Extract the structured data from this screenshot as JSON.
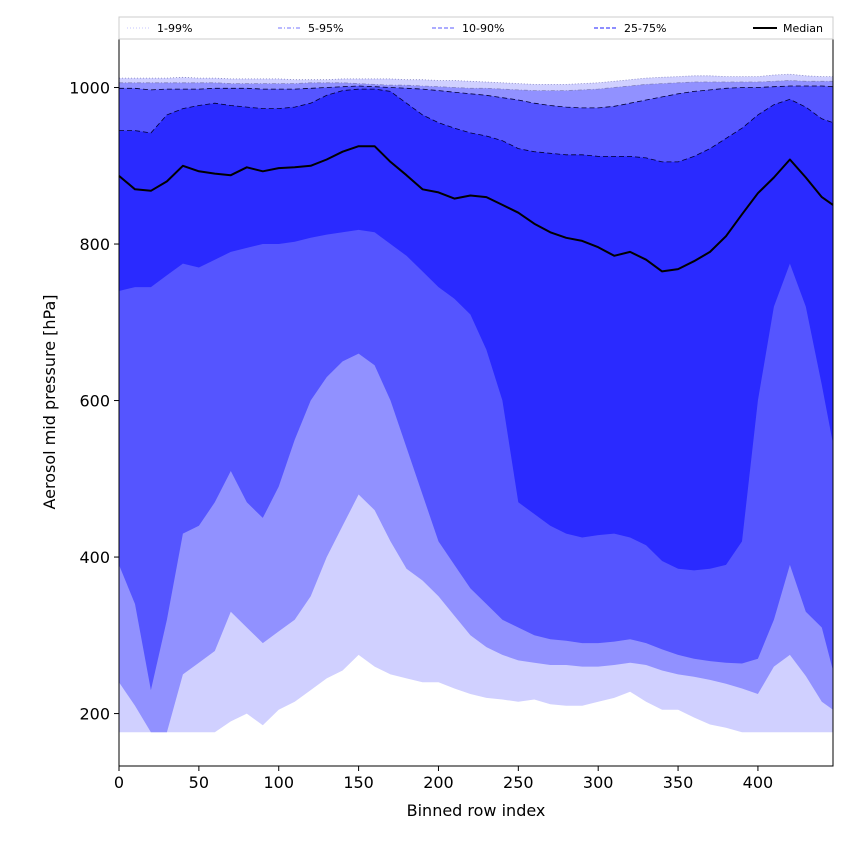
{
  "chart_data": {
    "type": "area",
    "xlabel": "Binned row index",
    "ylabel": "Aerosol mid pressure [hPa]",
    "xlim": [
      0,
      447
    ],
    "ylim": [
      133,
      1062
    ],
    "xticks": [
      0,
      50,
      100,
      150,
      200,
      250,
      300,
      350,
      400
    ],
    "yticks": [
      200,
      400,
      600,
      800,
      1000
    ],
    "grid": false,
    "legend_position": "top",
    "x": [
      0,
      10,
      20,
      30,
      40,
      50,
      60,
      70,
      80,
      90,
      100,
      110,
      120,
      130,
      140,
      150,
      160,
      170,
      180,
      190,
      200,
      210,
      220,
      230,
      240,
      250,
      260,
      270,
      280,
      290,
      300,
      310,
      320,
      330,
      340,
      350,
      360,
      370,
      380,
      390,
      400,
      410,
      420,
      430,
      440,
      447
    ],
    "bands": [
      {
        "name": "1-99%",
        "color": "#d0d0ff",
        "lower": [
          176,
          176,
          176,
          176,
          176,
          176,
          176,
          190,
          200,
          185,
          205,
          215,
          230,
          245,
          255,
          275,
          260,
          250,
          245,
          240,
          240,
          232,
          225,
          220,
          218,
          215,
          218,
          212,
          210,
          210,
          215,
          220,
          228,
          215,
          205,
          205,
          195,
          186,
          182,
          176,
          176,
          176,
          176,
          176,
          176,
          176
        ],
        "upper": [
          1012,
          1012,
          1012,
          1012,
          1013,
          1012,
          1012,
          1011,
          1011,
          1011,
          1011,
          1010,
          1010,
          1010,
          1011,
          1011,
          1011,
          1011,
          1010,
          1010,
          1009,
          1009,
          1008,
          1007,
          1006,
          1005,
          1004,
          1004,
          1004,
          1005,
          1006,
          1008,
          1010,
          1012,
          1013,
          1014,
          1015,
          1015,
          1014,
          1014,
          1014,
          1016,
          1017,
          1015,
          1014,
          1014
        ]
      },
      {
        "name": "5-95%",
        "color": "#9191ff",
        "lower": [
          240,
          210,
          176,
          176,
          250,
          265,
          280,
          330,
          310,
          290,
          305,
          320,
          350,
          400,
          440,
          480,
          460,
          420,
          385,
          370,
          350,
          325,
          300,
          285,
          275,
          268,
          265,
          262,
          262,
          260,
          260,
          262,
          265,
          262,
          255,
          250,
          247,
          243,
          238,
          232,
          225,
          260,
          275,
          248,
          215,
          205
        ],
        "upper": [
          1006,
          1006,
          1006,
          1006,
          1006,
          1006,
          1006,
          1005,
          1005,
          1005,
          1005,
          1005,
          1006,
          1006,
          1006,
          1005,
          1004,
          1003,
          1003,
          1002,
          1001,
          1000,
          999,
          999,
          998,
          997,
          996,
          996,
          996,
          997,
          998,
          1000,
          1002,
          1004,
          1005,
          1006,
          1007,
          1007,
          1007,
          1007,
          1007,
          1008,
          1009,
          1008,
          1008,
          1008
        ]
      },
      {
        "name": "10-90%",
        "color": "#5555ff",
        "lower": [
          390,
          340,
          230,
          320,
          430,
          440,
          470,
          510,
          470,
          450,
          490,
          550,
          600,
          630,
          650,
          660,
          645,
          600,
          540,
          480,
          420,
          390,
          360,
          340,
          320,
          310,
          300,
          295,
          293,
          290,
          290,
          292,
          295,
          290,
          282,
          275,
          270,
          267,
          265,
          264,
          270,
          320,
          390,
          330,
          310,
          255
        ],
        "upper": [
          999,
          999,
          997,
          998,
          998,
          998,
          999,
          999,
          999,
          998,
          998,
          998,
          999,
          1000,
          1001,
          1002,
          1001,
          1000,
          999,
          998,
          996,
          994,
          992,
          990,
          987,
          984,
          980,
          977,
          975,
          974,
          974,
          976,
          980,
          984,
          988,
          992,
          995,
          997,
          999,
          1000,
          1000,
          1001,
          1002,
          1002,
          1002,
          1001
        ]
      },
      {
        "name": "25-75%",
        "color": "#2a2aff",
        "lower": [
          740,
          745,
          745,
          760,
          775,
          770,
          780,
          790,
          795,
          800,
          800,
          803,
          808,
          812,
          815,
          818,
          815,
          800,
          785,
          765,
          745,
          730,
          710,
          665,
          600,
          470,
          455,
          440,
          430,
          425,
          428,
          430,
          425,
          415,
          395,
          385,
          383,
          385,
          390,
          420,
          600,
          720,
          775,
          720,
          620,
          545
        ],
        "upper": [
          945,
          945,
          942,
          965,
          973,
          977,
          980,
          977,
          975,
          973,
          973,
          975,
          980,
          990,
          996,
          998,
          998,
          995,
          980,
          965,
          955,
          948,
          942,
          938,
          932,
          922,
          918,
          916,
          914,
          914,
          912,
          912,
          912,
          910,
          905,
          905,
          912,
          922,
          935,
          948,
          965,
          978,
          985,
          975,
          960,
          955
        ]
      }
    ],
    "series": [
      {
        "name": "Median",
        "color": "#000000",
        "values": [
          887,
          870,
          868,
          880,
          900,
          893,
          890,
          888,
          898,
          893,
          897,
          898,
          900,
          908,
          918,
          925,
          925,
          905,
          888,
          870,
          866,
          858,
          862,
          860,
          850,
          840,
          826,
          815,
          808,
          804,
          796,
          785,
          790,
          780,
          765,
          768,
          778,
          790,
          810,
          838,
          865,
          885,
          908,
          885,
          860,
          850
        ]
      }
    ],
    "legend": [
      {
        "label": "1-99%",
        "style": "dotted",
        "color": "#d0d0ff"
      },
      {
        "label": "5-95%",
        "style": "dashdot",
        "color": "#9191ff"
      },
      {
        "label": "10-90%",
        "style": "dashed",
        "color": "#7a7aff"
      },
      {
        "label": "25-75%",
        "style": "dashed",
        "color": "#4a4aff"
      },
      {
        "label": "Median",
        "style": "solid",
        "color": "#000000"
      }
    ]
  }
}
